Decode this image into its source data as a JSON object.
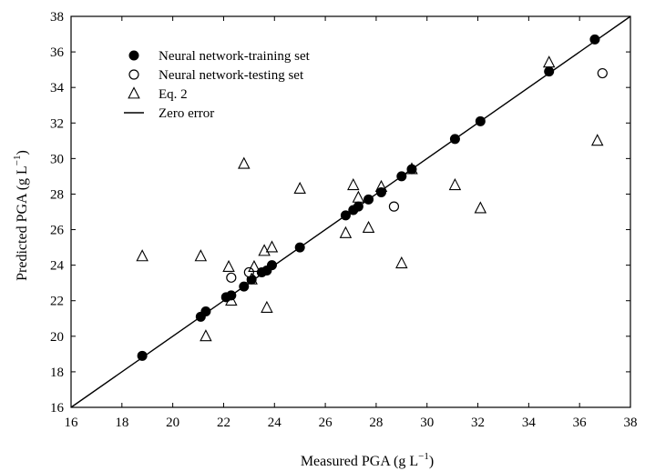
{
  "chart_data": {
    "type": "scatter",
    "xlabel": "Measured PGA (g L",
    "xlabel_sup": "−1",
    "xlabel_end": ")",
    "ylabel": "Predicted PGA (g L",
    "ylabel_sup": "−1",
    "ylabel_end": ")",
    "xlim": [
      16,
      38
    ],
    "ylim": [
      16,
      38
    ],
    "xticks": [
      "16",
      "18",
      "20",
      "22",
      "24",
      "26",
      "28",
      "30",
      "32",
      "34",
      "36",
      "38"
    ],
    "yticks": [
      "16",
      "18",
      "20",
      "22",
      "24",
      "26",
      "28",
      "30",
      "32",
      "34",
      "36",
      "38"
    ],
    "legend_position": "top-left",
    "series": [
      {
        "name": "Neural network-training set",
        "marker": "filled-circle",
        "color": "#000000",
        "x": [
          18.8,
          21.1,
          21.3,
          22.1,
          22.3,
          22.8,
          23.1,
          23.5,
          23.7,
          23.9,
          25.0,
          26.8,
          27.1,
          27.3,
          27.7,
          28.2,
          29.0,
          29.4,
          31.1,
          32.1,
          34.8,
          36.6
        ],
        "y": [
          18.9,
          21.1,
          21.4,
          22.2,
          22.3,
          22.8,
          23.2,
          23.6,
          23.7,
          24.0,
          25.0,
          26.8,
          27.1,
          27.3,
          27.7,
          28.1,
          29.0,
          29.4,
          31.1,
          32.1,
          34.9,
          36.7
        ]
      },
      {
        "name": "Neural network-testing set",
        "marker": "open-circle",
        "color": "#000000",
        "x": [
          22.3,
          23.0,
          28.7,
          36.9
        ],
        "y": [
          23.3,
          23.6,
          27.3,
          34.8
        ]
      },
      {
        "name": "Eq. 2",
        "marker": "open-triangle",
        "color": "#000000",
        "x": [
          18.8,
          21.1,
          21.3,
          22.2,
          22.3,
          22.8,
          23.1,
          23.2,
          23.6,
          23.7,
          23.9,
          25.0,
          26.8,
          27.1,
          27.3,
          27.7,
          28.2,
          29.0,
          29.4,
          31.1,
          32.1,
          34.8,
          36.7
        ],
        "y": [
          24.5,
          24.5,
          20.0,
          23.9,
          22.0,
          29.7,
          23.2,
          23.9,
          24.8,
          21.6,
          25.0,
          28.3,
          25.8,
          28.5,
          27.8,
          26.1,
          28.4,
          24.1,
          29.4,
          28.5,
          27.2,
          35.4,
          31.0
        ]
      },
      {
        "name": "Zero error",
        "marker": "line",
        "color": "#000000",
        "x": [
          16,
          38
        ],
        "y": [
          16,
          38
        ]
      }
    ]
  }
}
